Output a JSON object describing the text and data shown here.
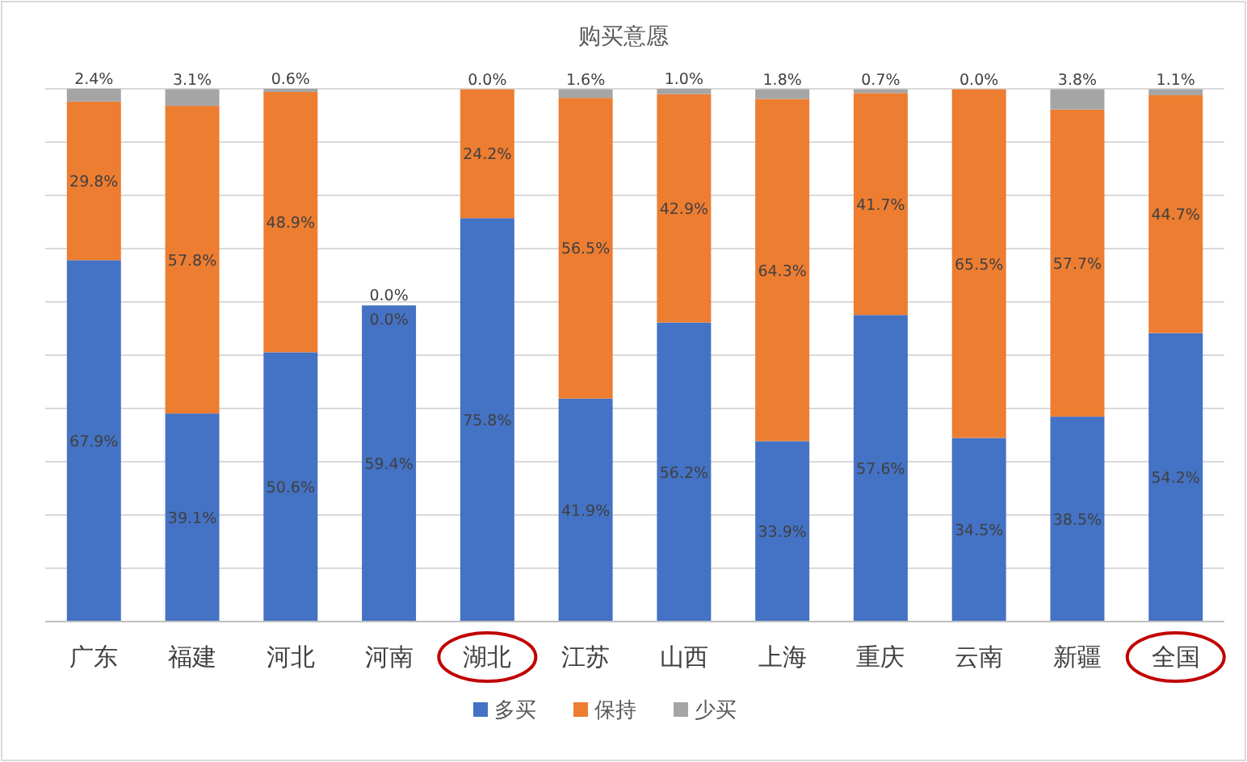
{
  "chart_data": {
    "type": "bar",
    "title": "购买意愿",
    "stacked": true,
    "legend": "bottom",
    "grid": true,
    "tick_labels": "x",
    "categories": [
      "广东",
      "福建",
      "河北",
      "河南",
      "湖北",
      "江苏",
      "山西",
      "上海",
      "重庆",
      "云南",
      "新疆",
      "全国"
    ],
    "series": [
      {
        "name": "多买",
        "color": "#4472c4",
        "values": [
          67.9,
          39.1,
          50.6,
          59.4,
          75.8,
          41.9,
          56.2,
          33.9,
          57.6,
          34.5,
          38.5,
          54.2
        ],
        "value_labels": [
          "67.9%",
          "39.1%",
          "50.6%",
          "59.4%",
          "75.8%",
          "41.9%",
          "56.2%",
          "33.9%",
          "57.6%",
          "34.5%",
          "38.5%",
          "54.2%"
        ]
      },
      {
        "name": "保持",
        "color": "#ed7d31",
        "values": [
          29.8,
          57.8,
          48.9,
          0.0,
          24.2,
          56.5,
          42.9,
          64.3,
          41.7,
          65.5,
          57.7,
          44.7
        ],
        "value_labels": [
          "29.8%",
          "57.8%",
          "48.9%",
          "0.0%",
          "24.2%",
          "56.5%",
          "42.9%",
          "64.3%",
          "41.7%",
          "65.5%",
          "57.7%",
          "44.7%"
        ]
      },
      {
        "name": "少买",
        "color": "#a5a5a5",
        "values": [
          2.4,
          3.1,
          0.6,
          0.0,
          0.0,
          1.6,
          1.0,
          1.8,
          0.7,
          0.0,
          3.8,
          1.1
        ],
        "value_labels": [
          "2.4%",
          "3.1%",
          "0.6%",
          "0.0%",
          "0.0%",
          "1.6%",
          "1.0%",
          "1.8%",
          "0.7%",
          "0.0%",
          "3.8%",
          "1.1%"
        ]
      }
    ]
  }
}
